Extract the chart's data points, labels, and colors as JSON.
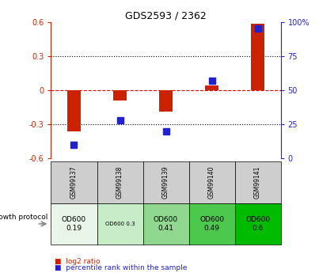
{
  "title": "GDS2593 / 2362",
  "samples": [
    "GSM99137",
    "GSM99138",
    "GSM99139",
    "GSM99140",
    "GSM99141"
  ],
  "log2_ratio": [
    -0.36,
    -0.09,
    -0.19,
    0.04,
    0.58
  ],
  "percentile_rank": [
    10,
    28,
    20,
    57,
    95
  ],
  "ylim_left": [
    -0.6,
    0.6
  ],
  "ylim_right": [
    0,
    100
  ],
  "yticks_left": [
    -0.6,
    -0.3,
    0.0,
    0.3,
    0.6
  ],
  "yticks_right": [
    0,
    25,
    50,
    75,
    100
  ],
  "ytick_labels_left": [
    "-0.6",
    "-0.3",
    "0",
    "0.3",
    "0.6"
  ],
  "ytick_labels_right": [
    "0",
    "25",
    "50",
    "75",
    "100%"
  ],
  "bar_color": "#cc2200",
  "dot_color": "#2222cc",
  "growth_protocol_label": "growth protocol",
  "growth_values": [
    "OD600\n0.19",
    "OD600 0.3",
    "OD600\n0.41",
    "OD600\n0.49",
    "OD600\n0.6"
  ],
  "growth_colors": [
    "#e8f5e8",
    "#c8ecc8",
    "#90d890",
    "#4cc84c",
    "#00bb00"
  ],
  "cell_bg_gray": "#cecece",
  "legend_red_label": "log2 ratio",
  "legend_blue_label": "percentile rank within the sample",
  "dotted_line_color": "#000000",
  "zero_line_color": "#dd0000"
}
